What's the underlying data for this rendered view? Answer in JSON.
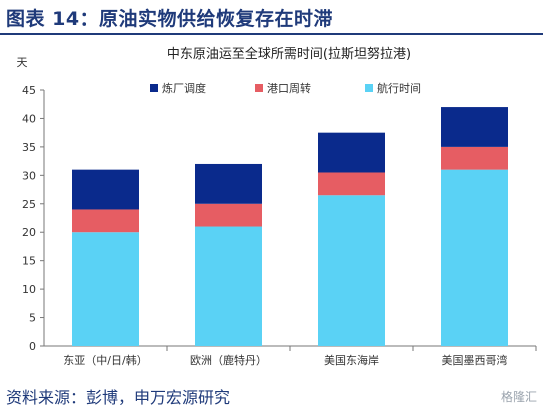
{
  "figure_title": "图表 14：原油实物供给恢复存在时滞",
  "source_text": "资料来源：彭博，申万宏源研究",
  "watermark": "格隆汇",
  "colors": {
    "header_blue": "#1f3a7a",
    "series": [
      "#5ad2f5",
      "#e65d63",
      "#0a2a8c"
    ]
  },
  "chart_data": {
    "type": "bar",
    "stacked": true,
    "title": "中东原油运至全球所需时间(拉斯坦努拉港)",
    "ylabel": "天",
    "ylim": [
      0,
      45
    ],
    "yticks": [
      0,
      5,
      10,
      15,
      20,
      25,
      30,
      35,
      40,
      45
    ],
    "legend_position": "top",
    "categories": [
      "东亚（中/日/韩）",
      "欧洲（鹿特丹）",
      "美国东海岸",
      "美国墨西哥湾"
    ],
    "series": [
      {
        "name": "航行时间",
        "values": [
          20,
          21,
          26.5,
          31
        ]
      },
      {
        "name": "港口周转",
        "values": [
          4,
          4,
          4,
          4
        ]
      },
      {
        "name": "炼厂调度",
        "values": [
          7,
          7,
          7,
          7
        ]
      }
    ]
  }
}
